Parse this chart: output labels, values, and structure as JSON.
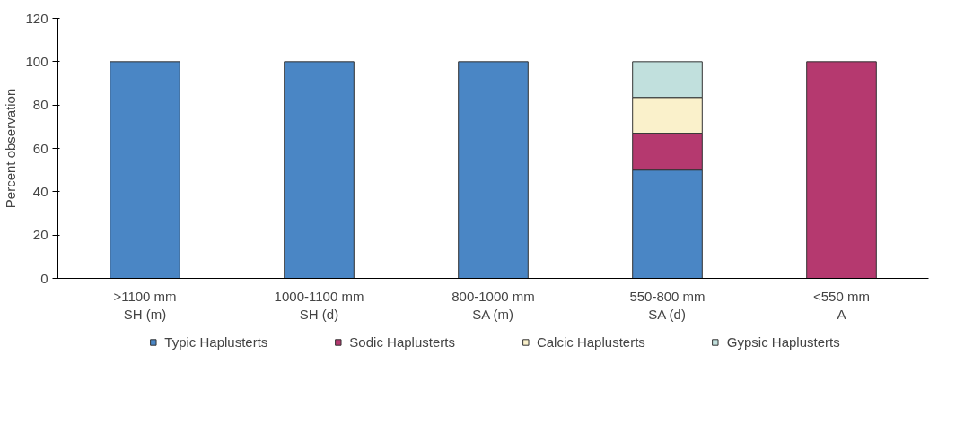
{
  "chart_data": {
    "type": "bar",
    "stacked": true,
    "ylabel": "Percent observation",
    "categories": [
      ">1100 mm\nSH (m)",
      "1000-1100 mm\nSH (d)",
      "800-1000 mm\nSA (m)",
      "550-800 mm\nSA (d)",
      "<550 mm\nA"
    ],
    "series": [
      {
        "name": "Typic Haplusterts",
        "color": "#4a86c5",
        "values": [
          100,
          100,
          100,
          50,
          0
        ]
      },
      {
        "name": "Sodic Haplusterts",
        "color": "#b5396f",
        "values": [
          0,
          0,
          0,
          17,
          100
        ]
      },
      {
        "name": "Calcic Haplusterts",
        "color": "#faf1cb",
        "values": [
          0,
          0,
          0,
          16.5,
          0
        ]
      },
      {
        "name": "Gypsic Haplusterts",
        "color": "#c1e0dd",
        "values": [
          0,
          0,
          0,
          16.5,
          0
        ]
      }
    ],
    "ylim": [
      0,
      120
    ],
    "yticks": [
      0,
      20,
      40,
      60,
      80,
      100,
      120
    ],
    "grid": false,
    "legend": "bottom"
  }
}
